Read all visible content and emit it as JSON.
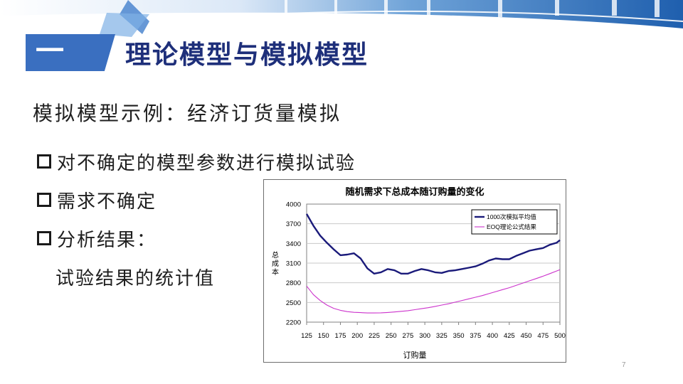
{
  "slide": {
    "section_number": "一",
    "title": "理论模型与模拟模型",
    "subtitle": "模拟模型示例：经济订货量模拟",
    "bullets": [
      {
        "text": "对不确定的模型参数进行模拟试验",
        "marker": true
      },
      {
        "text": "需求不确定",
        "marker": true
      },
      {
        "text": "分析结果：",
        "marker": true
      },
      {
        "text": "试验结果的统计值",
        "marker": false
      }
    ],
    "page_number": "7"
  },
  "colors": {
    "title": "#1e2f7a",
    "badge": "#3a6fc0",
    "series_sim": "#1a1a7a",
    "series_eoq": "#cc33cc"
  },
  "chart_data": {
    "type": "line",
    "title": "随机需求下总成本随订购量的变化",
    "xlabel": "订购量",
    "ylabel": "总成本",
    "x": [
      125,
      150,
      175,
      200,
      225,
      250,
      275,
      300,
      325,
      350,
      375,
      400,
      425,
      450,
      475,
      500
    ],
    "xlim": [
      125,
      500
    ],
    "ylim": [
      2200,
      4000
    ],
    "yticks": [
      2200,
      2500,
      2800,
      3100,
      3400,
      3700,
      4000
    ],
    "grid": "horizontal",
    "legend_position": "top-right",
    "series": [
      {
        "name": "1000次模拟平均值",
        "x": [
          125,
          135,
          145,
          155,
          165,
          175,
          185,
          195,
          205,
          215,
          225,
          235,
          245,
          255,
          265,
          275,
          285,
          295,
          305,
          315,
          325,
          335,
          345,
          355,
          365,
          375,
          385,
          395,
          405,
          415,
          425,
          435,
          445,
          455,
          465,
          475,
          485,
          495,
          500
        ],
        "values": [
          3850,
          3670,
          3520,
          3410,
          3310,
          3220,
          3230,
          3250,
          3170,
          3020,
          2940,
          2960,
          3010,
          2990,
          2940,
          2940,
          2980,
          3010,
          2990,
          2960,
          2950,
          2980,
          2990,
          3010,
          3030,
          3050,
          3090,
          3140,
          3170,
          3160,
          3160,
          3210,
          3250,
          3290,
          3310,
          3330,
          3380,
          3410,
          3450
        ]
      },
      {
        "name": "EOQ理论公式结果",
        "x": [
          125,
          135,
          145,
          155,
          165,
          175,
          185,
          195,
          205,
          215,
          225,
          235,
          245,
          255,
          265,
          275,
          285,
          295,
          305,
          315,
          325,
          335,
          345,
          355,
          365,
          375,
          385,
          395,
          405,
          415,
          425,
          435,
          445,
          455,
          465,
          475,
          485,
          495,
          500
        ],
        "values": [
          2750,
          2620,
          2530,
          2460,
          2410,
          2380,
          2360,
          2350,
          2345,
          2340,
          2340,
          2342,
          2348,
          2355,
          2365,
          2375,
          2390,
          2405,
          2420,
          2440,
          2460,
          2480,
          2505,
          2530,
          2555,
          2580,
          2605,
          2635,
          2665,
          2695,
          2725,
          2760,
          2795,
          2830,
          2865,
          2900,
          2940,
          2980,
          3000
        ]
      }
    ]
  }
}
